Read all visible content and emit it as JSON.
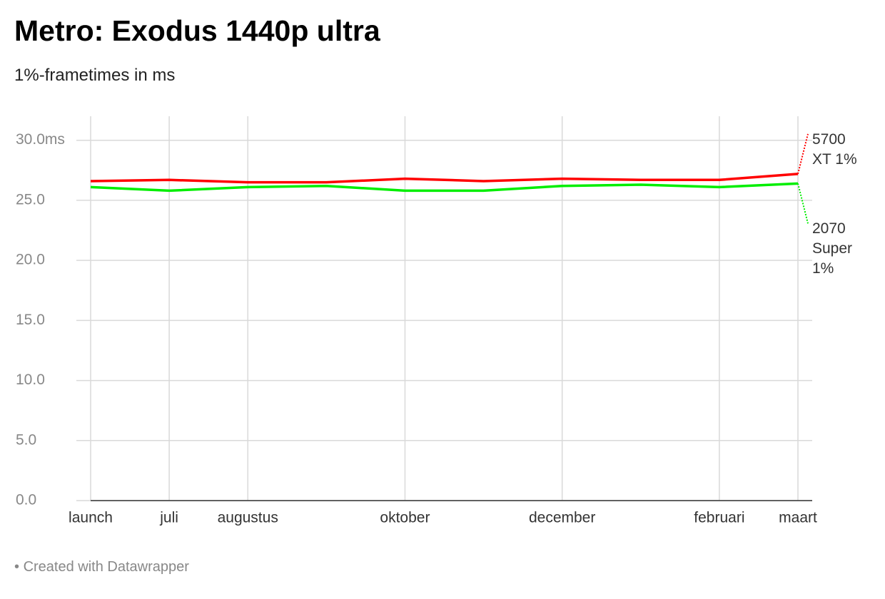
{
  "chart_data": {
    "type": "line",
    "title": "Metro: Exodus 1440p ultra",
    "subtitle": "1%-frametimes in ms",
    "categories": [
      "launch",
      "juli",
      "augustus",
      null,
      "oktober",
      null,
      "december",
      null,
      "februari",
      "maart"
    ],
    "series": [
      {
        "name": "5700 XT 1%",
        "color": "#ff0000",
        "values": [
          26.6,
          26.7,
          26.5,
          26.5,
          26.8,
          26.6,
          26.8,
          26.7,
          26.7,
          27.2
        ]
      },
      {
        "name": "2070 Super 1%",
        "color": "#00ee00",
        "values": [
          26.1,
          25.8,
          26.1,
          26.2,
          25.8,
          25.8,
          26.2,
          26.3,
          26.1,
          26.4
        ]
      }
    ],
    "ylim": [
      0,
      32
    ],
    "yticks": [
      {
        "value": 0,
        "label": "0.0"
      },
      {
        "value": 5,
        "label": "5.0"
      },
      {
        "value": 10,
        "label": "10.0"
      },
      {
        "value": 15,
        "label": "15.0"
      },
      {
        "value": 20,
        "label": "20.0"
      },
      {
        "value": 25,
        "label": "25.0"
      },
      {
        "value": 30,
        "label": "30.0ms"
      }
    ],
    "grid": true,
    "footer": "Created with Datawrapper"
  }
}
